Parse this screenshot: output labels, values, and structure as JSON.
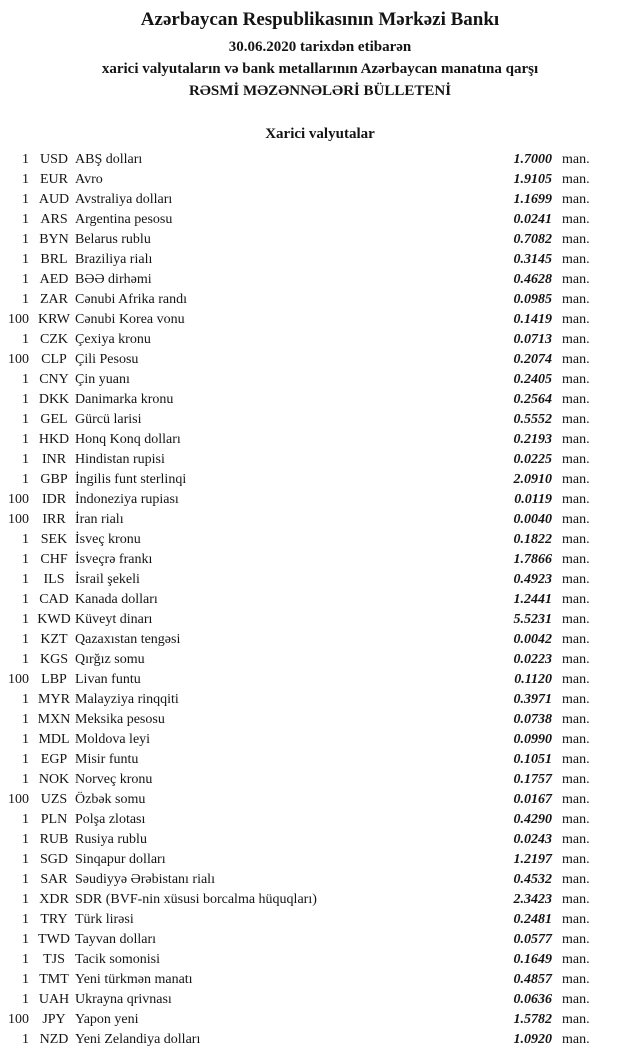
{
  "header": {
    "title": "Azərbaycan Respublikasının Mərkəzi Bankı",
    "date_line": "30.06.2020 tarixdən etibarən",
    "subject_line": "xarici valyutaların və bank metallarının Azərbaycan manatına qarşı",
    "bulletin_line": "RƏSMİ MƏZƏNNƏLƏRİ BÜLLETENİ"
  },
  "section": {
    "title": "Xarici valyutalar"
  },
  "unit_label": "man.",
  "text_color": "#141414",
  "background_color": "#ffffff",
  "rates": [
    {
      "qty": "1",
      "code": "USD",
      "name": "ABŞ dolları",
      "rate": "1.7000"
    },
    {
      "qty": "1",
      "code": "EUR",
      "name": "Avro",
      "rate": "1.9105"
    },
    {
      "qty": "1",
      "code": "AUD",
      "name": "Avstraliya dolları",
      "rate": "1.1699"
    },
    {
      "qty": "1",
      "code": "ARS",
      "name": "Argentina pesosu",
      "rate": "0.0241"
    },
    {
      "qty": "1",
      "code": "BYN",
      "name": "Belarus rublu",
      "rate": "0.7082"
    },
    {
      "qty": "1",
      "code": "BRL",
      "name": "Braziliya rialı",
      "rate": "0.3145"
    },
    {
      "qty": "1",
      "code": "AED",
      "name": "BƏƏ dirhəmi",
      "rate": "0.4628"
    },
    {
      "qty": "1",
      "code": "ZAR",
      "name": "Cənubi Afrika randı",
      "rate": "0.0985"
    },
    {
      "qty": "100",
      "code": "KRW",
      "name": "Cənubi Korea vonu",
      "rate": "0.1419"
    },
    {
      "qty": "1",
      "code": "CZK",
      "name": "Çexiya kronu",
      "rate": "0.0713"
    },
    {
      "qty": "100",
      "code": "CLP",
      "name": "Çili Pesosu",
      "rate": "0.2074"
    },
    {
      "qty": "1",
      "code": "CNY",
      "name": "Çin yuanı",
      "rate": "0.2405"
    },
    {
      "qty": "1",
      "code": "DKK",
      "name": "Danimarka kronu",
      "rate": "0.2564"
    },
    {
      "qty": "1",
      "code": "GEL",
      "name": "Gürcü larisi",
      "rate": "0.5552"
    },
    {
      "qty": "1",
      "code": "HKD",
      "name": "Honq Konq dolları",
      "rate": "0.2193"
    },
    {
      "qty": "1",
      "code": "INR",
      "name": "Hindistan rupisi",
      "rate": "0.0225"
    },
    {
      "qty": "1",
      "code": "GBP",
      "name": "İngilis funt sterlinqi",
      "rate": "2.0910"
    },
    {
      "qty": "100",
      "code": "IDR",
      "name": "İndoneziya rupiası",
      "rate": "0.0119"
    },
    {
      "qty": "100",
      "code": "IRR",
      "name": "İran rialı",
      "rate": "0.0040"
    },
    {
      "qty": "1",
      "code": "SEK",
      "name": "İsveç kronu",
      "rate": "0.1822"
    },
    {
      "qty": "1",
      "code": "CHF",
      "name": "İsveçrə frankı",
      "rate": "1.7866"
    },
    {
      "qty": "1",
      "code": "ILS",
      "name": "İsrail şekeli",
      "rate": "0.4923"
    },
    {
      "qty": "1",
      "code": "CAD",
      "name": "Kanada dolları",
      "rate": "1.2441"
    },
    {
      "qty": "1",
      "code": "KWD",
      "name": "Küveyt dinarı",
      "rate": "5.5231"
    },
    {
      "qty": "1",
      "code": "KZT",
      "name": "Qazaxıstan tengəsi",
      "rate": "0.0042"
    },
    {
      "qty": "1",
      "code": "KGS",
      "name": "Qırğız somu",
      "rate": "0.0223"
    },
    {
      "qty": "100",
      "code": "LBP",
      "name": "Livan funtu",
      "rate": "0.1120"
    },
    {
      "qty": "1",
      "code": "MYR",
      "name": "Malayziya rinqqiti",
      "rate": "0.3971"
    },
    {
      "qty": "1",
      "code": "MXN",
      "name": "Meksika pesosu",
      "rate": "0.0738"
    },
    {
      "qty": "1",
      "code": "MDL",
      "name": "Moldova leyi",
      "rate": "0.0990"
    },
    {
      "qty": "1",
      "code": "EGP",
      "name": "Misir funtu",
      "rate": "0.1051"
    },
    {
      "qty": "1",
      "code": "NOK",
      "name": "Norveç kronu",
      "rate": "0.1757"
    },
    {
      "qty": "100",
      "code": "UZS",
      "name": "Özbək somu",
      "rate": "0.0167"
    },
    {
      "qty": "1",
      "code": "PLN",
      "name": "Polşa zlotası",
      "rate": "0.4290"
    },
    {
      "qty": "1",
      "code": "RUB",
      "name": "Rusiya rublu",
      "rate": "0.0243"
    },
    {
      "qty": "1",
      "code": "SGD",
      "name": "Sinqapur dolları",
      "rate": "1.2197"
    },
    {
      "qty": "1",
      "code": "SAR",
      "name": "Səudiyyə Ərəbistanı rialı",
      "rate": "0.4532"
    },
    {
      "qty": "1",
      "code": "XDR",
      "name": "SDR (BVF-nin xüsusi borcalma hüquqları)",
      "rate": "2.3423"
    },
    {
      "qty": "1",
      "code": "TRY",
      "name": "Türk lirəsi",
      "rate": "0.2481"
    },
    {
      "qty": "1",
      "code": "TWD",
      "name": "Tayvan dolları",
      "rate": "0.0577"
    },
    {
      "qty": "1",
      "code": "TJS",
      "name": "Tacik somonisi",
      "rate": "0.1649"
    },
    {
      "qty": "1",
      "code": "TMT",
      "name": "Yeni türkmən manatı",
      "rate": "0.4857"
    },
    {
      "qty": "1",
      "code": "UAH",
      "name": "Ukrayna qrivnası",
      "rate": "0.0636"
    },
    {
      "qty": "100",
      "code": "JPY",
      "name": "Yapon yeni",
      "rate": "1.5782"
    },
    {
      "qty": "1",
      "code": "NZD",
      "name": "Yeni Zelandiya dolları",
      "rate": "1.0920"
    }
  ]
}
